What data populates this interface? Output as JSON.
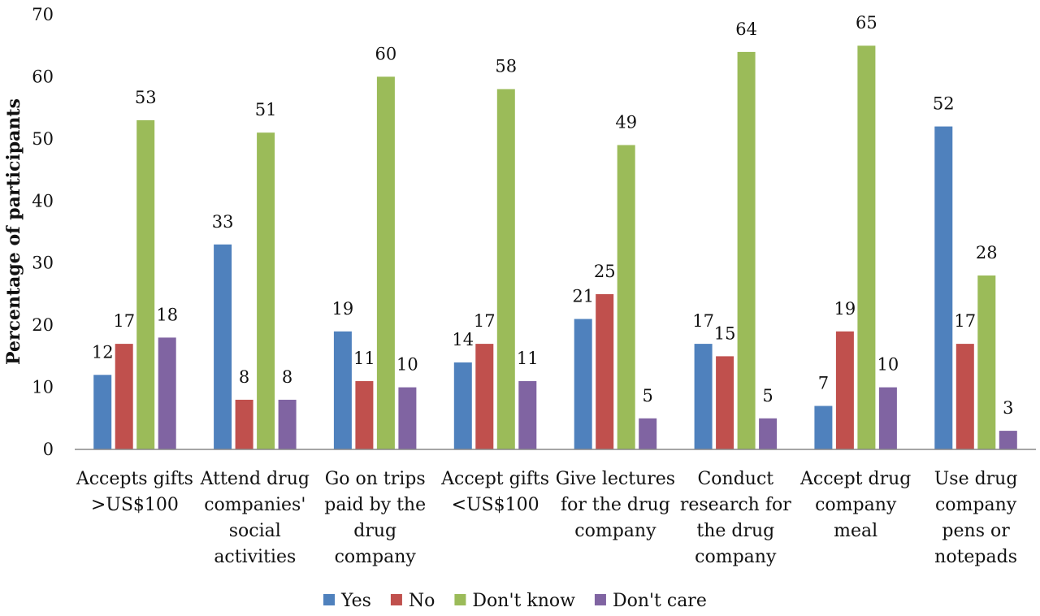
{
  "chart_data": {
    "type": "bar",
    "title": "",
    "xlabel": "",
    "ylabel": "Percentage of participants",
    "ylim": [
      0,
      70
    ],
    "yticks": [
      0,
      10,
      20,
      30,
      40,
      50,
      60,
      70
    ],
    "grid": false,
    "legend": "bottom",
    "categories": [
      [
        "Accepts gifts",
        ">US$100"
      ],
      [
        "Attend drug",
        "companies'",
        "social",
        "activities"
      ],
      [
        "Go on trips",
        "paid by the",
        "drug",
        "company"
      ],
      [
        "Accept gifts",
        "<US$100"
      ],
      [
        "Give lectures",
        "for the drug",
        "company"
      ],
      [
        "Conduct",
        "research for",
        "the drug",
        "company"
      ],
      [
        "Accept drug",
        "company",
        "meal"
      ],
      [
        "Use drug",
        "company",
        "pens or",
        "notepads"
      ]
    ],
    "series": [
      {
        "name": "Yes",
        "color": "#4f81bd",
        "values": [
          12,
          33,
          19,
          14,
          21,
          17,
          7,
          52
        ]
      },
      {
        "name": "No",
        "color": "#c0504d",
        "values": [
          17,
          8,
          11,
          17,
          25,
          15,
          19,
          17
        ]
      },
      {
        "name": "Don't know",
        "color": "#9bbb59",
        "values": [
          53,
          51,
          60,
          58,
          49,
          64,
          65,
          28
        ]
      },
      {
        "name": "Don't care",
        "color": "#8064a2",
        "values": [
          18,
          8,
          10,
          11,
          5,
          5,
          10,
          3
        ]
      }
    ]
  }
}
